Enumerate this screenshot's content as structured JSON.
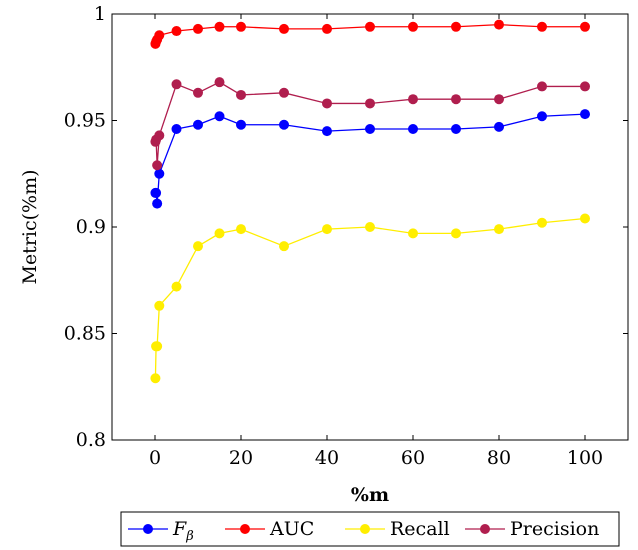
{
  "chart_data": {
    "type": "line",
    "xlabel": "%m",
    "ylabel": "Metric(%m)",
    "xlim": [
      -10,
      110
    ],
    "ylim": [
      0.8,
      1.0
    ],
    "x_ticks": [
      0,
      20,
      40,
      60,
      80,
      100
    ],
    "y_ticks": [
      0.8,
      0.85,
      0.9,
      0.95,
      1.0
    ],
    "x_tick_labels": [
      "0",
      "20",
      "40",
      "60",
      "80",
      "100"
    ],
    "y_tick_labels": [
      "0.8",
      "0.85",
      "0.9",
      "0.95",
      "1"
    ],
    "grid": false,
    "legend_position": "bottom-center",
    "x": [
      0.1,
      0.25,
      0.5,
      1,
      5,
      10,
      15,
      20,
      30,
      40,
      50,
      60,
      70,
      80,
      90,
      100
    ],
    "series": [
      {
        "name": "F_β",
        "name_display": "Fβ",
        "color": "#0000ff",
        "values": [
          0.916,
          0.916,
          0.911,
          0.925,
          0.946,
          0.948,
          0.952,
          0.948,
          0.948,
          0.945,
          0.946,
          0.946,
          0.946,
          0.947,
          0.952,
          0.953
        ]
      },
      {
        "name": "AUC",
        "color": "#ff0000",
        "values": [
          0.986,
          0.987,
          0.988,
          0.99,
          0.992,
          0.993,
          0.994,
          0.994,
          0.993,
          0.993,
          0.994,
          0.994,
          0.994,
          0.995,
          0.994,
          0.994
        ]
      },
      {
        "name": "Recall",
        "color": "#ffee00",
        "values": [
          0.829,
          0.844,
          0.844,
          0.863,
          0.872,
          0.891,
          0.897,
          0.899,
          0.891,
          0.899,
          0.9,
          0.897,
          0.897,
          0.899,
          0.902,
          0.904
        ]
      },
      {
        "name": "Precision",
        "color": "#b01e4e",
        "values": [
          0.94,
          0.941,
          0.929,
          0.943,
          0.967,
          0.963,
          0.968,
          0.962,
          0.963,
          0.958,
          0.958,
          0.96,
          0.96,
          0.96,
          0.966,
          0.966
        ]
      }
    ]
  }
}
